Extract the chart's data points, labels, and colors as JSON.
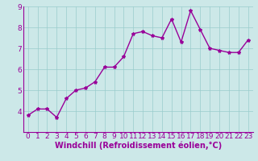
{
  "x": [
    0,
    1,
    2,
    3,
    4,
    5,
    6,
    7,
    8,
    9,
    10,
    11,
    12,
    13,
    14,
    15,
    16,
    17,
    18,
    19,
    20,
    21,
    22,
    23
  ],
  "y": [
    3.8,
    4.1,
    4.1,
    3.7,
    4.6,
    5.0,
    5.1,
    5.4,
    6.1,
    6.1,
    6.6,
    7.7,
    7.8,
    7.6,
    7.5,
    8.4,
    7.3,
    8.8,
    7.9,
    7.0,
    6.9,
    6.8,
    6.8,
    7.4
  ],
  "line_color": "#990099",
  "marker": "*",
  "marker_size": 3,
  "bg_color": "#cce8e8",
  "grid_color": "#99cccc",
  "xlabel": "Windchill (Refroidissement éolien,°C)",
  "xlim": [
    -0.5,
    23.5
  ],
  "ylim": [
    3.0,
    9.0
  ],
  "yticks": [
    4,
    5,
    6,
    7,
    8,
    9
  ],
  "xticks": [
    0,
    1,
    2,
    3,
    4,
    5,
    6,
    7,
    8,
    9,
    10,
    11,
    12,
    13,
    14,
    15,
    16,
    17,
    18,
    19,
    20,
    21,
    22,
    23
  ],
  "xlabel_fontsize": 7,
  "tick_fontsize": 6.5,
  "label_color": "#990099",
  "spine_color": "#990099",
  "linewidth": 1.0
}
